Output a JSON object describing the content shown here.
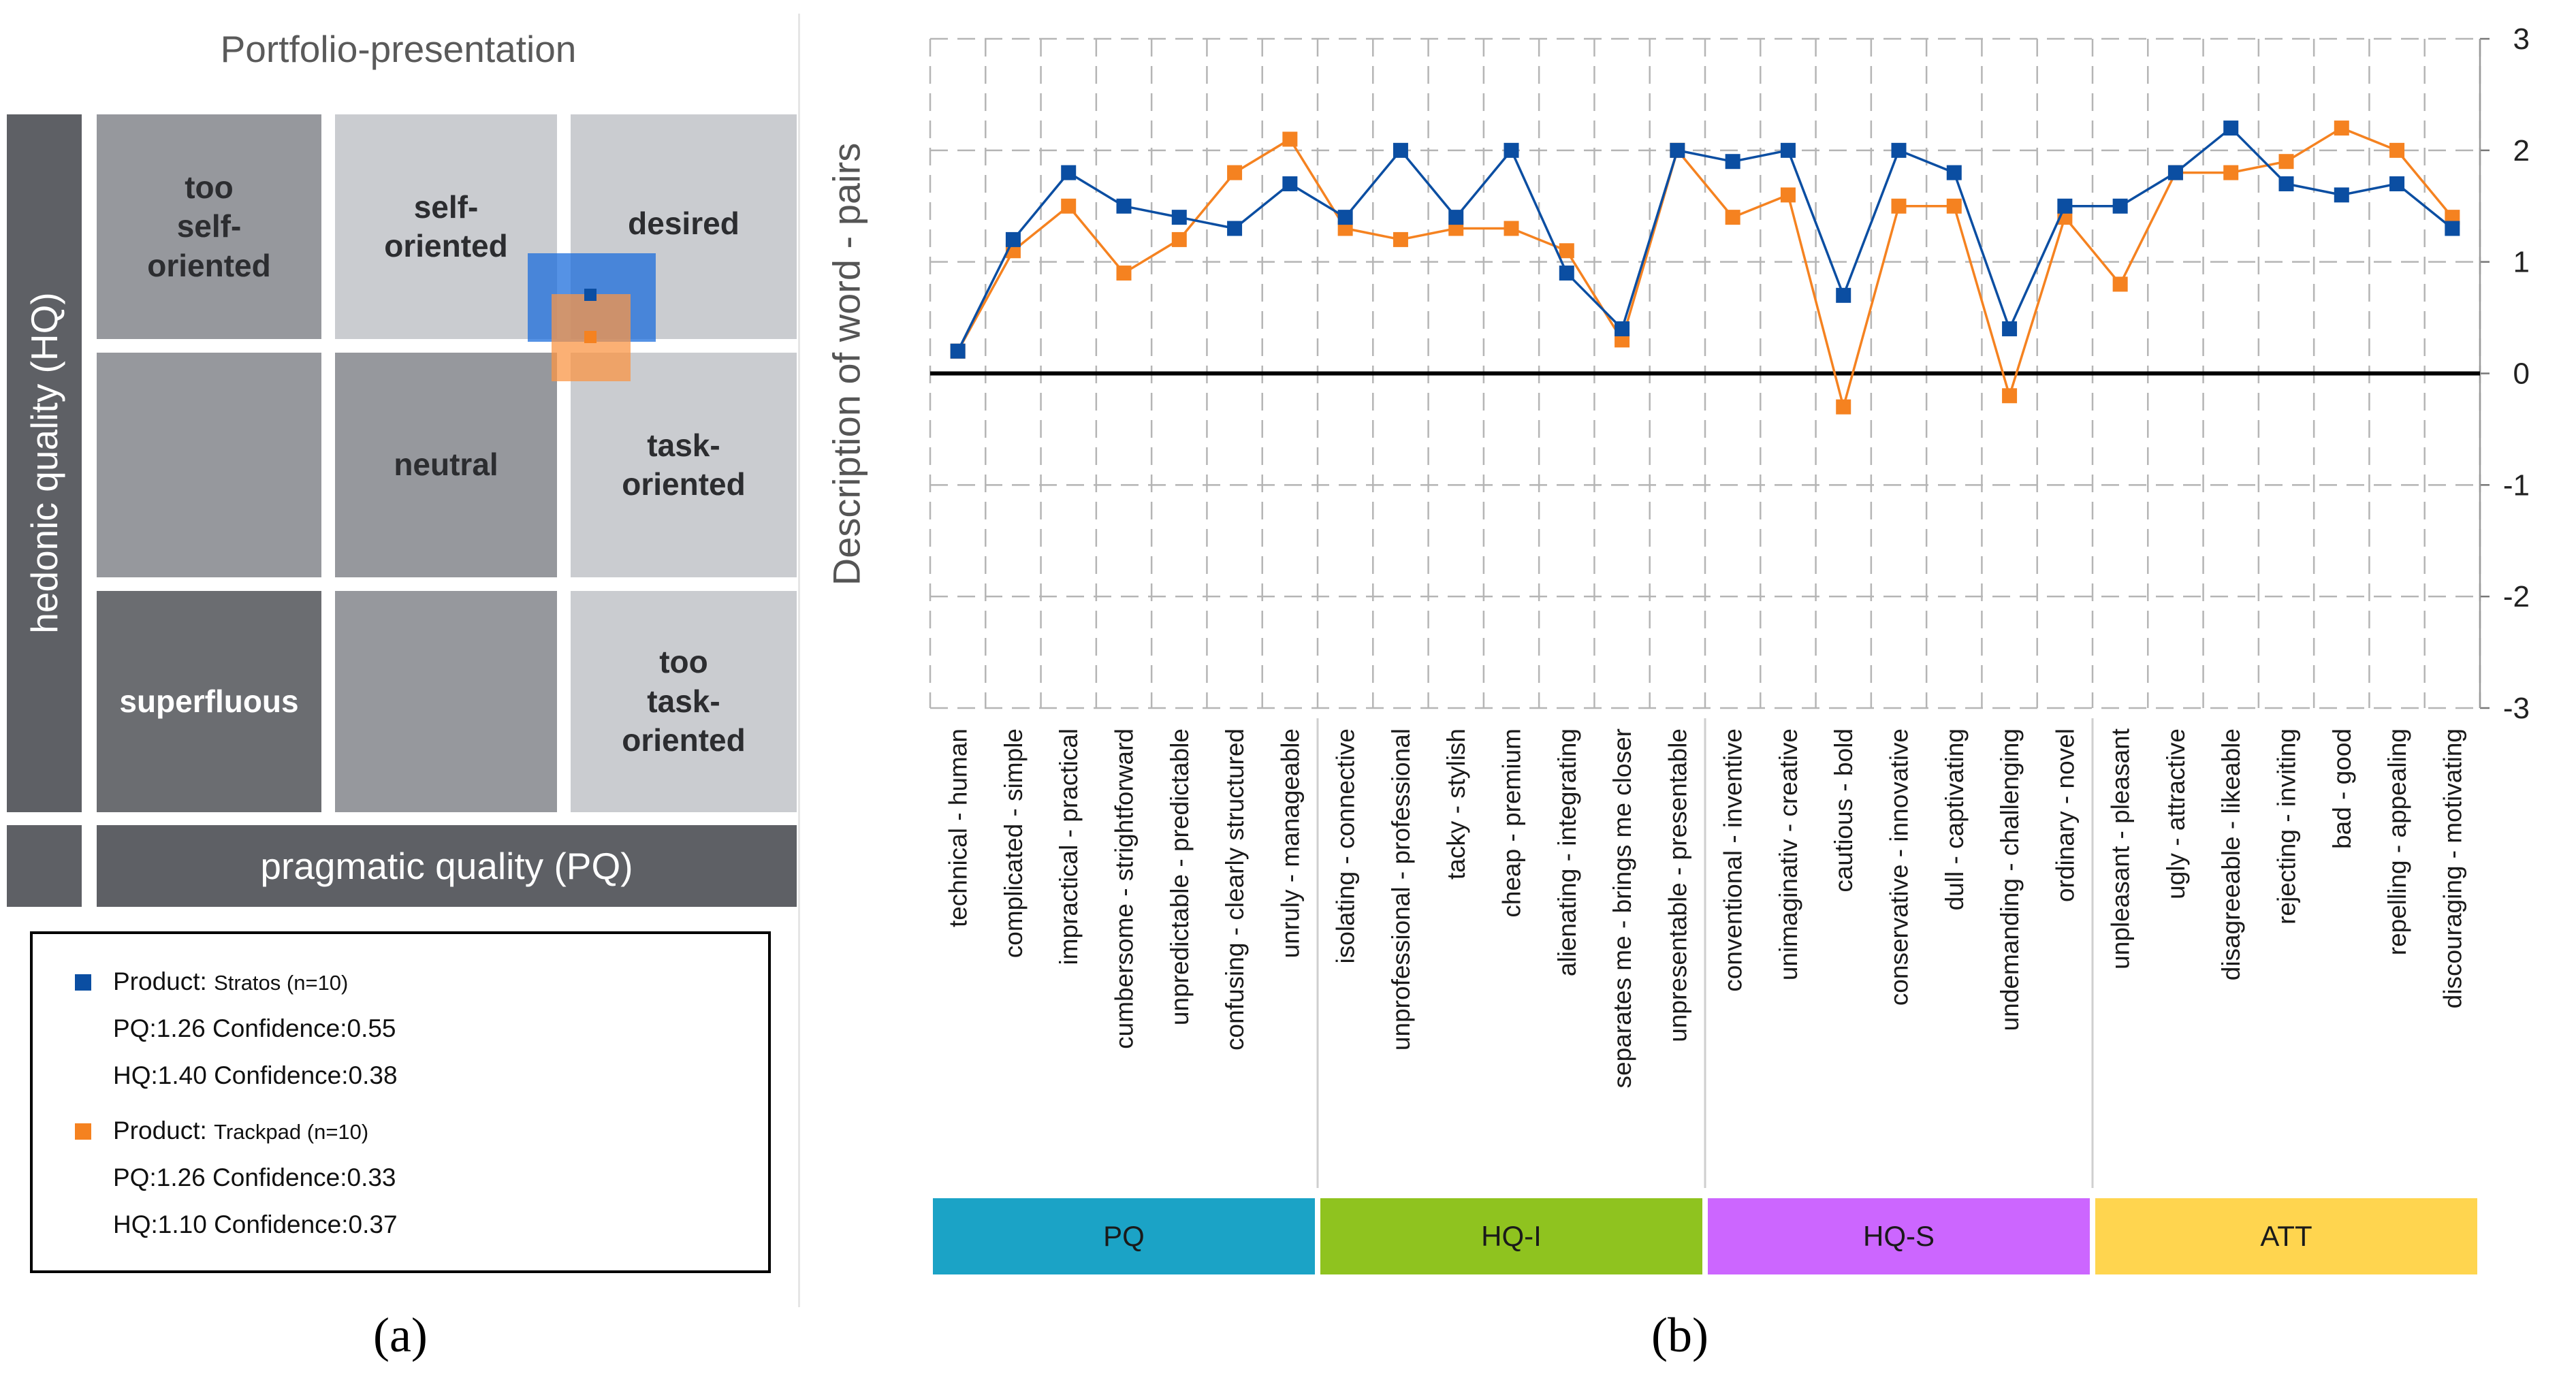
{
  "panel_a": {
    "title": "Portfolio-presentation",
    "y_axis_label": "hedonic quality (HQ)",
    "x_axis_label": "pragmatic quality (PQ)",
    "cells": {
      "too_self_oriented": "too\nself-\noriented",
      "self_oriented": "self-\noriented",
      "desired": "desired",
      "neutral": "neutral",
      "task_oriented": "task-\noriented",
      "superfluous": "superfluous",
      "too_task_oriented": "too\ntask-\noriented"
    },
    "legend": {
      "stratos": {
        "prefix": "Product:",
        "name": "Stratos (n=10)",
        "pq_line": "PQ:1.26 Confidence:0.55",
        "hq_line": "HQ:1.40 Confidence:0.38",
        "color": "#0b4ea2",
        "pq": 1.26,
        "pq_conf": 0.55,
        "hq": 1.4,
        "hq_conf": 0.38
      },
      "trackpad": {
        "prefix": "Product:",
        "name": "Trackpad (n=10)",
        "pq_line": "PQ:1.26 Confidence:0.33",
        "hq_line": "HQ:1.10 Confidence:0.37",
        "color": "#f58220",
        "pq": 1.26,
        "pq_conf": 0.33,
        "hq": 1.1,
        "hq_conf": 0.37
      }
    },
    "caption": "(a)"
  },
  "chart_data": {
    "type": "line",
    "ylabel": "Description of word - pairs",
    "ylim": [
      -3,
      3
    ],
    "yticks": [
      "3",
      "2",
      "1",
      "0",
      "-1",
      "-2",
      "-3"
    ],
    "categories": [
      "technical - human",
      "complicated - simple",
      "impractical - practical",
      "cumbersome - strightforward",
      "unpredictable - predictable",
      "confusing - clearly structured",
      "unruly - manageable",
      "isolating - connective",
      "unprofessional - professional",
      "tacky - stylish",
      "cheap - premium",
      "alienating - integrating",
      "separates me - brings me closer",
      "unpresentable - presentable",
      "conventional - inventive",
      "unimaginativ - creative",
      "cautious - bold",
      "conservative - innovative",
      "dull - captivating",
      "undemanding - challenging",
      "ordinary - novel",
      "unpleasant - pleasant",
      "ugly - attractive",
      "disagreeable - likeable",
      "rejecting - inviting",
      "bad - good",
      "repelling - appealing",
      "discouraging - motivating"
    ],
    "series": [
      {
        "name": "Stratos",
        "color": "#0b4ea2",
        "values": [
          0.2,
          1.2,
          1.8,
          1.5,
          1.4,
          1.3,
          1.7,
          1.4,
          2.0,
          1.4,
          2.0,
          0.9,
          0.4,
          2.0,
          1.9,
          2.0,
          0.7,
          2.0,
          1.8,
          0.4,
          1.5,
          1.5,
          1.8,
          2.2,
          1.7,
          1.6,
          1.7,
          1.3
        ]
      },
      {
        "name": "Trackpad",
        "color": "#f58220",
        "values": [
          0.2,
          1.1,
          1.5,
          0.9,
          1.2,
          1.8,
          2.1,
          1.3,
          1.2,
          1.3,
          1.3,
          1.1,
          0.3,
          2.0,
          1.4,
          1.6,
          -0.3,
          1.5,
          1.5,
          -0.2,
          1.4,
          0.8,
          1.8,
          1.8,
          1.9,
          2.2,
          2.0,
          1.4
        ]
      }
    ],
    "groups": [
      {
        "label": "PQ",
        "color": "#1ba3c6",
        "start": 0,
        "end": 6
      },
      {
        "label": "HQ-I",
        "color": "#8fc31f",
        "start": 7,
        "end": 13
      },
      {
        "label": "HQ-S",
        "color": "#cc66ff",
        "start": 14,
        "end": 20
      },
      {
        "label": "ATT",
        "color": "#ffd54f",
        "start": 21,
        "end": 27
      }
    ]
  },
  "caption_b": "(b)"
}
